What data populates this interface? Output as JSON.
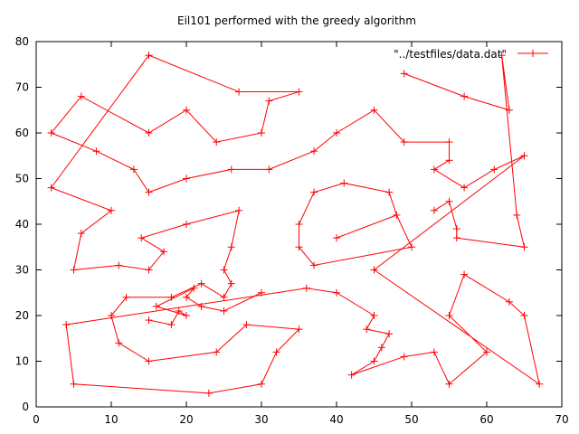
{
  "chart_data": {
    "type": "line",
    "title": "Eil101 performed with the greedy algorithm",
    "xlabel": "",
    "ylabel": "",
    "xlim": [
      0,
      70
    ],
    "ylim": [
      0,
      80
    ],
    "x_ticks": [
      0,
      10,
      20,
      30,
      40,
      50,
      60,
      70
    ],
    "y_ticks": [
      0,
      10,
      20,
      30,
      40,
      50,
      60,
      70,
      80
    ],
    "grid": false,
    "legend_position": "top-right",
    "series": [
      {
        "name": "\"../testfiles/data.dat\"",
        "color": "#ff0000",
        "marker": "plus",
        "points": [
          [
            35,
            69
          ],
          [
            27,
            69
          ],
          [
            15,
            77
          ],
          [
            2,
            48
          ],
          [
            10,
            43
          ],
          [
            6,
            38
          ],
          [
            5,
            30
          ],
          [
            11,
            31
          ],
          [
            15,
            30
          ],
          [
            17,
            34
          ],
          [
            14,
            37
          ],
          [
            20,
            40
          ],
          [
            27,
            43
          ],
          [
            26,
            35
          ],
          [
            25,
            30
          ],
          [
            26,
            27
          ],
          [
            25,
            24
          ],
          [
            22,
            27
          ],
          [
            18,
            24
          ],
          [
            12,
            24
          ],
          [
            10,
            20
          ],
          [
            11,
            14
          ],
          [
            15,
            10
          ],
          [
            24,
            12
          ],
          [
            28,
            18
          ],
          [
            35,
            17
          ],
          [
            32,
            12
          ],
          [
            30,
            5
          ],
          [
            23,
            3
          ],
          [
            5,
            5
          ],
          [
            4,
            18
          ],
          [
            36,
            26
          ],
          [
            40,
            25
          ],
          [
            45,
            20
          ],
          [
            44,
            17
          ],
          [
            47,
            16
          ],
          [
            46,
            13
          ],
          [
            45,
            10
          ],
          [
            42,
            7
          ],
          [
            49,
            11
          ],
          [
            53,
            12
          ],
          [
            55,
            5
          ],
          [
            60,
            12
          ],
          [
            55,
            20
          ],
          [
            57,
            29
          ],
          [
            63,
            23
          ],
          [
            65,
            20
          ],
          [
            67,
            5
          ],
          [
            45,
            30
          ],
          [
            65,
            55
          ],
          [
            61,
            52
          ],
          [
            57,
            48
          ],
          [
            53,
            52
          ],
          [
            55,
            54
          ],
          [
            55,
            58
          ],
          [
            49,
            58
          ],
          [
            45,
            65
          ],
          [
            40,
            60
          ],
          [
            37,
            56
          ],
          [
            31,
            52
          ],
          [
            26,
            52
          ],
          [
            20,
            50
          ],
          [
            15,
            47
          ],
          [
            13,
            52
          ],
          [
            8,
            56
          ],
          [
            2,
            60
          ],
          [
            6,
            68
          ],
          [
            15,
            60
          ],
          [
            20,
            65
          ],
          [
            24,
            58
          ],
          [
            30,
            60
          ],
          [
            31,
            67
          ],
          [
            35,
            69
          ]
        ],
        "fragment_a": [
          [
            15,
            19
          ],
          [
            18,
            18
          ],
          [
            19,
            21
          ],
          [
            20,
            20
          ],
          [
            16,
            22
          ],
          [
            21,
            26
          ],
          [
            20,
            24
          ],
          [
            22,
            22
          ],
          [
            25,
            21
          ],
          [
            30,
            25
          ]
        ],
        "fragment_b": [
          [
            49,
            73
          ],
          [
            57,
            68
          ],
          [
            63,
            65
          ],
          [
            62,
            77
          ],
          [
            64,
            42
          ],
          [
            65,
            35
          ],
          [
            56,
            37
          ],
          [
            56,
            39
          ],
          [
            55,
            45
          ],
          [
            53,
            43
          ]
        ],
        "fragment_c": [
          [
            35,
            35
          ],
          [
            35,
            40
          ],
          [
            37,
            47
          ],
          [
            41,
            49
          ],
          [
            47,
            47
          ],
          [
            48,
            42
          ],
          [
            50,
            35
          ],
          [
            37,
            31
          ],
          [
            35,
            35
          ]
        ],
        "fragment_d": [
          [
            40,
            37
          ],
          [
            48,
            42
          ]
        ]
      }
    ]
  }
}
